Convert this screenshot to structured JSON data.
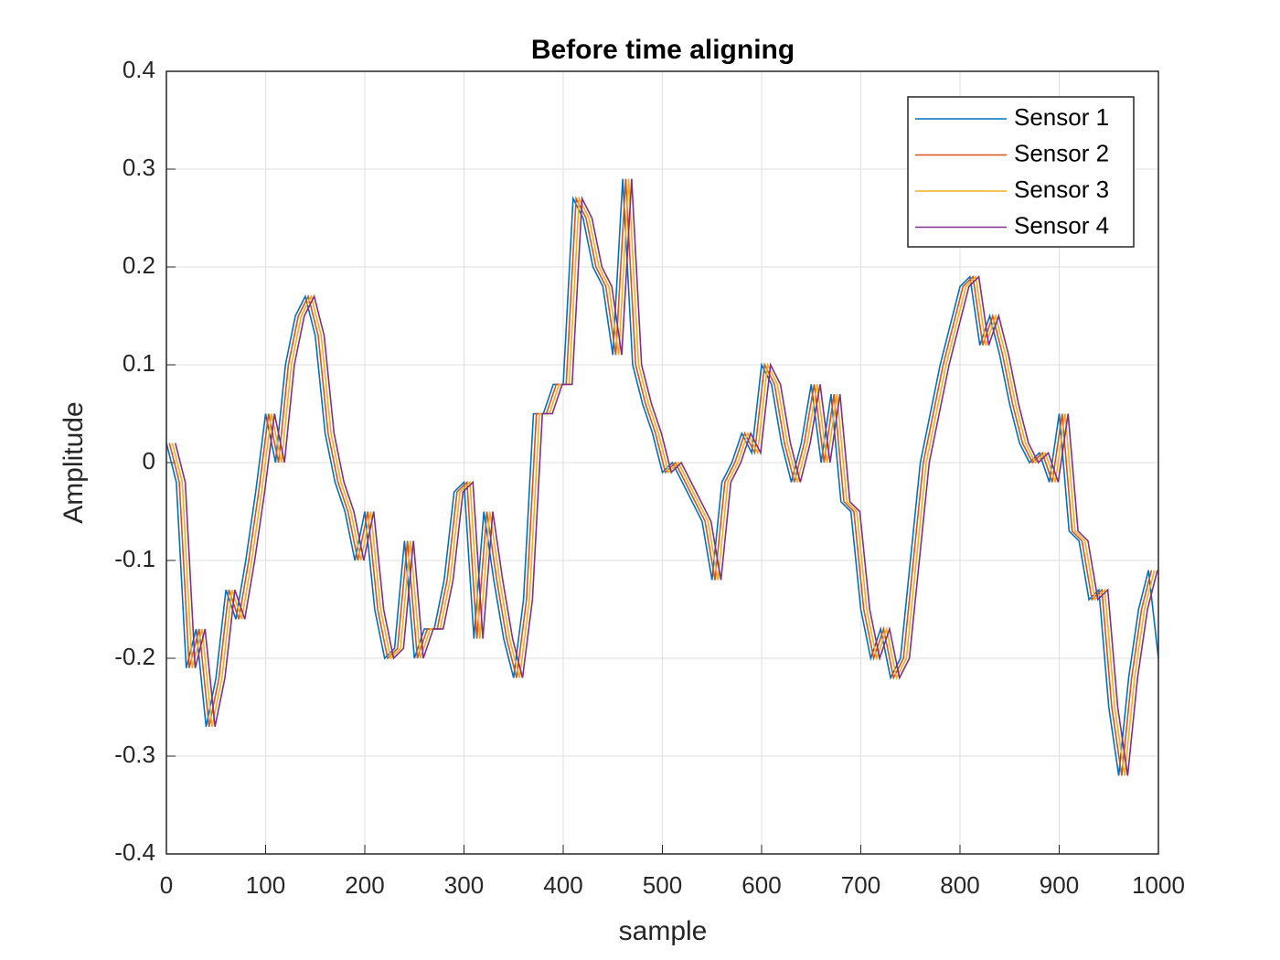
{
  "chart_data": {
    "type": "line",
    "title": "Before time aligning",
    "x_label": "sample",
    "y_label": "Amplitude",
    "xlim": [
      0,
      1000
    ],
    "ylim": [
      -0.4,
      0.4
    ],
    "xticks": [
      0,
      100,
      200,
      300,
      400,
      500,
      600,
      700,
      800,
      900,
      1000
    ],
    "yticks": [
      -0.4,
      -0.3,
      -0.2,
      -0.1,
      0,
      0.1,
      0.2,
      0.3,
      0.4
    ],
    "grid": true,
    "legend_position": "northeast",
    "series": [
      {
        "name": "Sensor 1",
        "color": "#0072BD",
        "x": [
          0,
          10,
          20,
          30,
          40,
          50,
          60,
          70,
          80,
          90,
          100,
          110,
          120,
          130,
          140,
          150,
          160,
          170,
          180,
          190,
          200,
          210,
          220,
          230,
          240,
          250,
          260,
          270,
          280,
          290,
          300,
          310,
          320,
          330,
          340,
          350,
          360,
          370,
          380,
          390,
          400,
          410,
          420,
          430,
          440,
          450,
          460,
          470,
          480,
          490,
          500,
          510,
          520,
          530,
          540,
          550,
          560,
          570,
          580,
          590,
          600,
          610,
          620,
          630,
          640,
          650,
          660,
          670,
          680,
          690,
          700,
          710,
          720,
          730,
          740,
          750,
          760,
          770,
          780,
          790,
          800,
          810,
          820,
          830,
          840,
          850,
          860,
          870,
          880,
          890,
          900,
          910,
          920,
          930,
          940,
          950,
          960,
          970,
          980,
          990,
          1000
        ],
        "values": [
          0.02,
          -0.02,
          -0.21,
          -0.17,
          -0.27,
          -0.22,
          -0.13,
          -0.16,
          -0.1,
          -0.03,
          0.05,
          0.0,
          0.1,
          0.15,
          0.17,
          0.13,
          0.03,
          -0.02,
          -0.05,
          -0.1,
          -0.05,
          -0.15,
          -0.2,
          -0.19,
          -0.08,
          -0.2,
          -0.17,
          -0.17,
          -0.12,
          -0.03,
          -0.02,
          -0.18,
          -0.05,
          -0.12,
          -0.18,
          -0.22,
          -0.14,
          0.05,
          0.05,
          0.08,
          0.08,
          0.27,
          0.25,
          0.2,
          0.18,
          0.11,
          0.29,
          0.1,
          0.06,
          0.03,
          -0.01,
          0.0,
          -0.02,
          -0.04,
          -0.06,
          -0.12,
          -0.02,
          0.0,
          0.03,
          0.01,
          0.1,
          0.08,
          0.02,
          -0.02,
          0.02,
          0.08,
          0.0,
          0.07,
          -0.04,
          -0.05,
          -0.15,
          -0.2,
          -0.17,
          -0.22,
          -0.2,
          -0.1,
          0.0,
          0.05,
          0.1,
          0.14,
          0.18,
          0.19,
          0.12,
          0.15,
          0.11,
          0.06,
          0.02,
          0.0,
          0.01,
          -0.02,
          0.05,
          -0.07,
          -0.08,
          -0.14,
          -0.13,
          -0.25,
          -0.32,
          -0.22,
          -0.15,
          -0.11,
          -0.2
        ]
      },
      {
        "name": "Sensor 2",
        "color": "#D95319",
        "x": [
          3,
          13,
          23,
          33,
          43,
          53,
          63,
          73,
          83,
          93,
          103,
          113,
          123,
          133,
          143,
          153,
          163,
          173,
          183,
          193,
          203,
          213,
          223,
          233,
          243,
          253,
          263,
          273,
          283,
          293,
          303,
          313,
          323,
          333,
          343,
          353,
          363,
          373,
          383,
          393,
          403,
          413,
          423,
          433,
          443,
          453,
          463,
          473,
          483,
          493,
          503,
          513,
          523,
          533,
          543,
          553,
          563,
          573,
          583,
          593,
          603,
          613,
          623,
          633,
          643,
          653,
          663,
          673,
          683,
          693,
          703,
          713,
          723,
          733,
          743,
          753,
          763,
          773,
          783,
          793,
          803,
          813,
          823,
          833,
          843,
          853,
          863,
          873,
          883,
          893,
          903,
          913,
          923,
          933,
          943,
          953,
          963,
          973,
          983,
          993
        ],
        "values": [
          0.02,
          -0.02,
          -0.21,
          -0.17,
          -0.27,
          -0.22,
          -0.13,
          -0.16,
          -0.1,
          -0.03,
          0.05,
          0.0,
          0.1,
          0.15,
          0.17,
          0.13,
          0.03,
          -0.02,
          -0.05,
          -0.1,
          -0.05,
          -0.15,
          -0.2,
          -0.19,
          -0.08,
          -0.2,
          -0.17,
          -0.17,
          -0.12,
          -0.03,
          -0.02,
          -0.18,
          -0.05,
          -0.12,
          -0.18,
          -0.22,
          -0.14,
          0.05,
          0.05,
          0.08,
          0.08,
          0.27,
          0.25,
          0.2,
          0.18,
          0.11,
          0.29,
          0.1,
          0.06,
          0.03,
          -0.01,
          0.0,
          -0.02,
          -0.04,
          -0.06,
          -0.12,
          -0.02,
          0.0,
          0.03,
          0.01,
          0.1,
          0.08,
          0.02,
          -0.02,
          0.02,
          0.08,
          0.0,
          0.07,
          -0.04,
          -0.05,
          -0.15,
          -0.2,
          -0.17,
          -0.22,
          -0.2,
          -0.1,
          0.0,
          0.05,
          0.1,
          0.14,
          0.18,
          0.19,
          0.12,
          0.15,
          0.11,
          0.06,
          0.02,
          0.0,
          0.01,
          -0.02,
          0.05,
          -0.07,
          -0.08,
          -0.14,
          -0.13,
          -0.25,
          -0.32,
          -0.22,
          -0.15,
          -0.11
        ]
      },
      {
        "name": "Sensor 3",
        "color": "#EDB120",
        "x": [
          6,
          16,
          26,
          36,
          46,
          56,
          66,
          76,
          86,
          96,
          106,
          116,
          126,
          136,
          146,
          156,
          166,
          176,
          186,
          196,
          206,
          216,
          226,
          236,
          246,
          256,
          266,
          276,
          286,
          296,
          306,
          316,
          326,
          336,
          346,
          356,
          366,
          376,
          386,
          396,
          406,
          416,
          426,
          436,
          446,
          456,
          466,
          476,
          486,
          496,
          506,
          516,
          526,
          536,
          546,
          556,
          566,
          576,
          586,
          596,
          606,
          616,
          626,
          636,
          646,
          656,
          666,
          676,
          686,
          696,
          706,
          716,
          726,
          736,
          746,
          756,
          766,
          776,
          786,
          796,
          806,
          816,
          826,
          836,
          846,
          856,
          866,
          876,
          886,
          896,
          906,
          916,
          926,
          936,
          946,
          956,
          966,
          976,
          986,
          996
        ],
        "values": [
          0.02,
          -0.02,
          -0.21,
          -0.17,
          -0.27,
          -0.22,
          -0.13,
          -0.16,
          -0.1,
          -0.03,
          0.05,
          0.0,
          0.1,
          0.15,
          0.17,
          0.13,
          0.03,
          -0.02,
          -0.05,
          -0.1,
          -0.05,
          -0.15,
          -0.2,
          -0.19,
          -0.08,
          -0.2,
          -0.17,
          -0.17,
          -0.12,
          -0.03,
          -0.02,
          -0.18,
          -0.05,
          -0.12,
          -0.18,
          -0.22,
          -0.14,
          0.05,
          0.05,
          0.08,
          0.08,
          0.27,
          0.25,
          0.2,
          0.18,
          0.11,
          0.29,
          0.1,
          0.06,
          0.03,
          -0.01,
          0.0,
          -0.02,
          -0.04,
          -0.06,
          -0.12,
          -0.02,
          0.0,
          0.03,
          0.01,
          0.1,
          0.08,
          0.02,
          -0.02,
          0.02,
          0.08,
          0.0,
          0.07,
          -0.04,
          -0.05,
          -0.15,
          -0.2,
          -0.17,
          -0.22,
          -0.2,
          -0.1,
          0.0,
          0.05,
          0.1,
          0.14,
          0.18,
          0.19,
          0.12,
          0.15,
          0.11,
          0.06,
          0.02,
          0.0,
          0.01,
          -0.02,
          0.05,
          -0.07,
          -0.08,
          -0.14,
          -0.13,
          -0.25,
          -0.32,
          -0.22,
          -0.15,
          -0.11
        ]
      },
      {
        "name": "Sensor 4",
        "color": "#7E2F8E",
        "x": [
          9,
          19,
          29,
          39,
          49,
          59,
          69,
          79,
          89,
          99,
          109,
          119,
          129,
          139,
          149,
          159,
          169,
          179,
          189,
          199,
          209,
          219,
          229,
          239,
          249,
          259,
          269,
          279,
          289,
          299,
          309,
          319,
          329,
          339,
          349,
          359,
          369,
          379,
          389,
          399,
          409,
          419,
          429,
          439,
          449,
          459,
          469,
          479,
          489,
          499,
          509,
          519,
          529,
          539,
          549,
          559,
          569,
          579,
          589,
          599,
          609,
          619,
          629,
          639,
          649,
          659,
          669,
          679,
          689,
          699,
          709,
          719,
          729,
          739,
          749,
          759,
          769,
          779,
          789,
          799,
          809,
          819,
          829,
          839,
          849,
          859,
          869,
          879,
          889,
          899,
          909,
          919,
          929,
          939,
          949,
          959,
          969,
          979,
          989,
          999
        ],
        "values": [
          0.02,
          -0.02,
          -0.21,
          -0.17,
          -0.27,
          -0.22,
          -0.13,
          -0.16,
          -0.1,
          -0.03,
          0.05,
          0.0,
          0.1,
          0.15,
          0.17,
          0.13,
          0.03,
          -0.02,
          -0.05,
          -0.1,
          -0.05,
          -0.15,
          -0.2,
          -0.19,
          -0.08,
          -0.2,
          -0.17,
          -0.17,
          -0.12,
          -0.03,
          -0.02,
          -0.18,
          -0.05,
          -0.12,
          -0.18,
          -0.22,
          -0.14,
          0.05,
          0.05,
          0.08,
          0.08,
          0.27,
          0.25,
          0.2,
          0.18,
          0.11,
          0.29,
          0.1,
          0.06,
          0.03,
          -0.01,
          0.0,
          -0.02,
          -0.04,
          -0.06,
          -0.12,
          -0.02,
          0.0,
          0.03,
          0.01,
          0.1,
          0.08,
          0.02,
          -0.02,
          0.02,
          0.08,
          0.0,
          0.07,
          -0.04,
          -0.05,
          -0.15,
          -0.2,
          -0.17,
          -0.22,
          -0.2,
          -0.1,
          0.0,
          0.05,
          0.1,
          0.14,
          0.18,
          0.19,
          0.12,
          0.15,
          0.11,
          0.06,
          0.02,
          0.0,
          0.01,
          -0.02,
          0.05,
          -0.07,
          -0.08,
          -0.14,
          -0.13,
          -0.25,
          -0.32,
          -0.22,
          -0.15,
          -0.11
        ]
      }
    ]
  }
}
